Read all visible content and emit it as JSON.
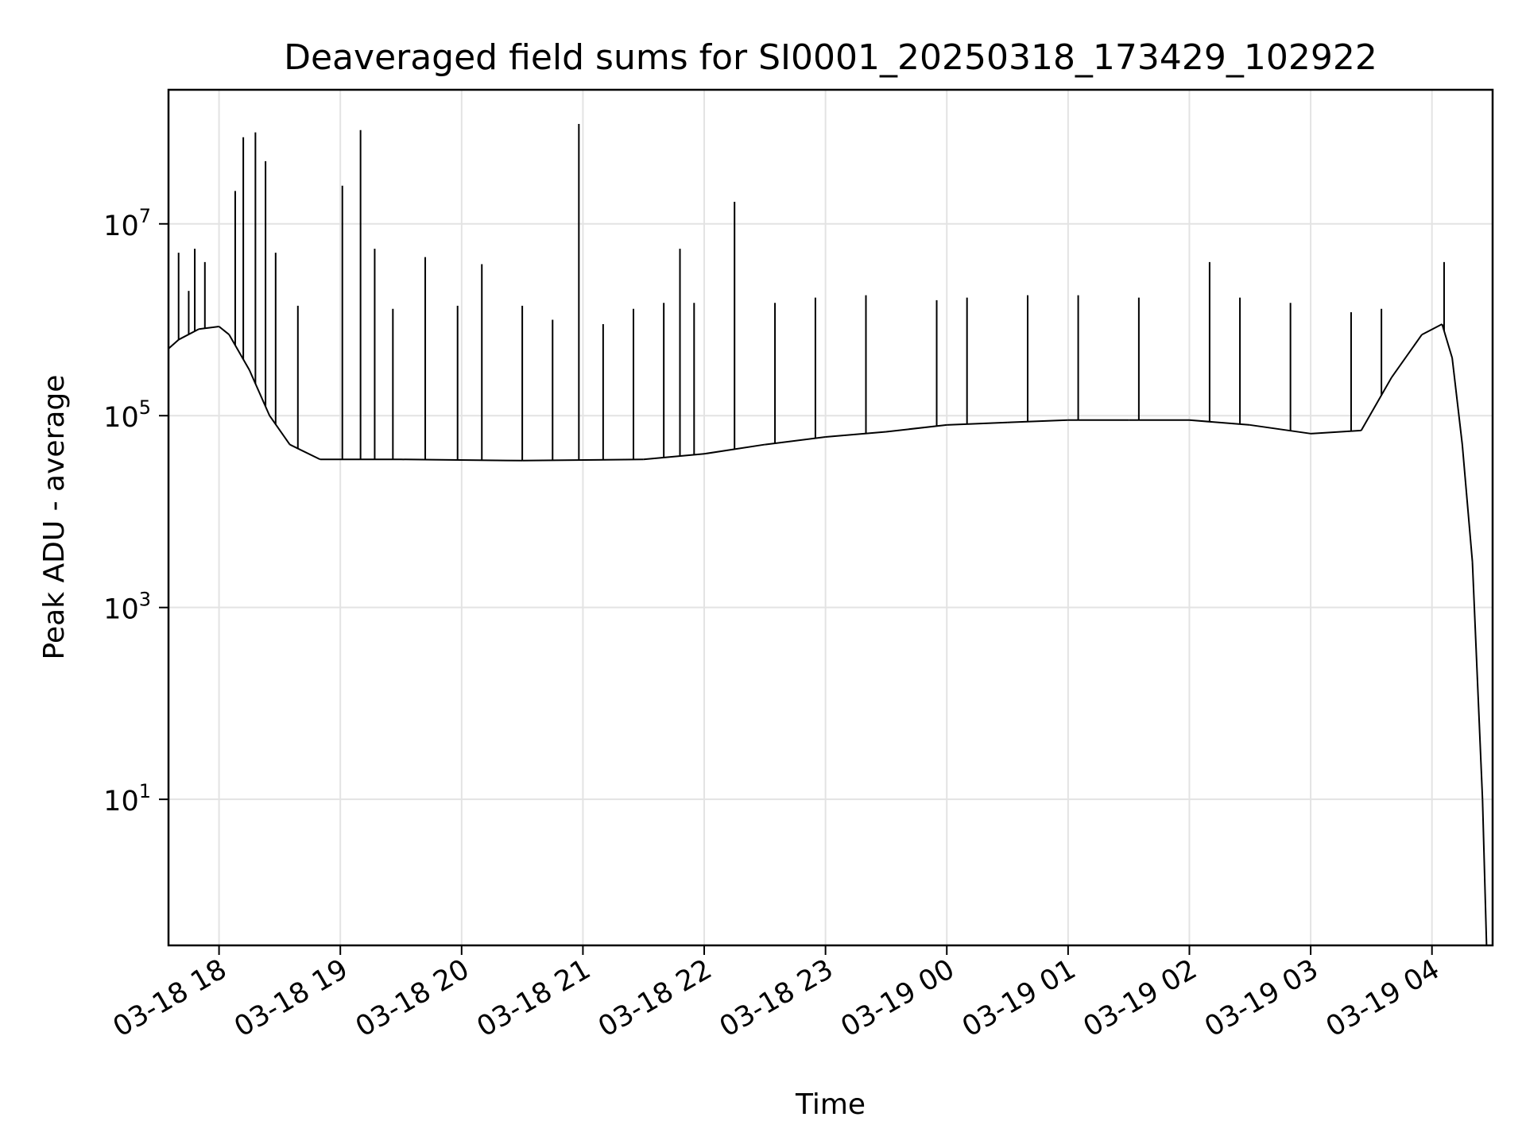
{
  "chart_data": {
    "type": "line",
    "title": "Deaveraged field sums for SI0001_20250318_173429_102922",
    "xlabel": "Time",
    "ylabel": "Peak ADU - average",
    "yscale": "log",
    "xlim": [
      "2025-03-18 17:35",
      "2025-03-19 04:30"
    ],
    "ylim": [
      0.3,
      250000000.0
    ],
    "grid": true,
    "line_color": "#000000",
    "x_ticks": [
      {
        "t": "2025-03-18 18:00",
        "label": "03-18 18"
      },
      {
        "t": "2025-03-18 19:00",
        "label": "03-18 19"
      },
      {
        "t": "2025-03-18 20:00",
        "label": "03-18 20"
      },
      {
        "t": "2025-03-18 21:00",
        "label": "03-18 21"
      },
      {
        "t": "2025-03-18 22:00",
        "label": "03-18 22"
      },
      {
        "t": "2025-03-18 23:00",
        "label": "03-18 23"
      },
      {
        "t": "2025-03-19 00:00",
        "label": "03-19 00"
      },
      {
        "t": "2025-03-19 01:00",
        "label": "03-19 01"
      },
      {
        "t": "2025-03-19 02:00",
        "label": "03-19 02"
      },
      {
        "t": "2025-03-19 03:00",
        "label": "03-19 03"
      },
      {
        "t": "2025-03-19 04:00",
        "label": "03-19 04"
      }
    ],
    "y_ticks": [
      {
        "value": 10,
        "base": "10",
        "exp": "1"
      },
      {
        "value": 1000,
        "base": "10",
        "exp": "3"
      },
      {
        "value": 100000,
        "base": "10",
        "exp": "5"
      },
      {
        "value": 10000000,
        "base": "10",
        "exp": "7"
      }
    ],
    "series": [
      {
        "baseline": [
          [
            "2025-03-18 17:35",
            500000
          ],
          [
            "2025-03-18 17:40",
            620000
          ],
          [
            "2025-03-18 17:50",
            800000
          ],
          [
            "2025-03-18 18:00",
            850000
          ],
          [
            "2025-03-18 18:05",
            700000
          ],
          [
            "2025-03-18 18:15",
            300000
          ],
          [
            "2025-03-18 18:25",
            100000
          ],
          [
            "2025-03-18 18:35",
            50000
          ],
          [
            "2025-03-18 18:50",
            35000
          ],
          [
            "2025-03-18 19:30",
            35000
          ],
          [
            "2025-03-18 20:30",
            34000
          ],
          [
            "2025-03-18 21:30",
            35000
          ],
          [
            "2025-03-18 22:00",
            40000
          ],
          [
            "2025-03-18 22:30",
            50000
          ],
          [
            "2025-03-18 23:00",
            60000
          ],
          [
            "2025-03-18 23:30",
            68000
          ],
          [
            "2025-03-19 00:00",
            80000
          ],
          [
            "2025-03-19 00:30",
            85000
          ],
          [
            "2025-03-19 01:00",
            90000
          ],
          [
            "2025-03-19 01:30",
            90000
          ],
          [
            "2025-03-19 02:00",
            90000
          ],
          [
            "2025-03-19 02:30",
            80000
          ],
          [
            "2025-03-19 03:00",
            65000
          ],
          [
            "2025-03-19 03:25",
            70000
          ],
          [
            "2025-03-19 03:40",
            250000
          ],
          [
            "2025-03-19 03:55",
            700000
          ],
          [
            "2025-03-19 04:05",
            900000
          ],
          [
            "2025-03-19 04:10",
            400000
          ],
          [
            "2025-03-19 04:15",
            50000
          ],
          [
            "2025-03-19 04:20",
            3000
          ],
          [
            "2025-03-19 04:25",
            10
          ],
          [
            "2025-03-19 04:27",
            0.3
          ]
        ],
        "spikes": [
          [
            "2025-03-18 17:40",
            5000000
          ],
          [
            "2025-03-18 17:45",
            2000000
          ],
          [
            "2025-03-18 17:48",
            5500000
          ],
          [
            "2025-03-18 17:53",
            4000000
          ],
          [
            "2025-03-18 18:08",
            22000000
          ],
          [
            "2025-03-18 18:12",
            80000000
          ],
          [
            "2025-03-18 18:18",
            90000000
          ],
          [
            "2025-03-18 18:23",
            45000000
          ],
          [
            "2025-03-18 18:28",
            5000000
          ],
          [
            "2025-03-18 18:39",
            1400000
          ],
          [
            "2025-03-18 19:01",
            25000000
          ],
          [
            "2025-03-18 19:10",
            95000000
          ],
          [
            "2025-03-18 19:17",
            5500000
          ],
          [
            "2025-03-18 19:26",
            1300000
          ],
          [
            "2025-03-18 19:42",
            4500000
          ],
          [
            "2025-03-18 19:58",
            1400000
          ],
          [
            "2025-03-18 20:10",
            3800000
          ],
          [
            "2025-03-18 20:30",
            1400000
          ],
          [
            "2025-03-18 20:45",
            1000000
          ],
          [
            "2025-03-18 20:58",
            110000000
          ],
          [
            "2025-03-18 21:10",
            900000
          ],
          [
            "2025-03-18 21:25",
            1300000
          ],
          [
            "2025-03-18 21:40",
            1500000
          ],
          [
            "2025-03-18 21:48",
            5500000
          ],
          [
            "2025-03-18 21:55",
            1500000
          ],
          [
            "2025-03-18 22:15",
            17000000
          ],
          [
            "2025-03-18 22:35",
            1500000
          ],
          [
            "2025-03-18 22:55",
            1700000
          ],
          [
            "2025-03-18 23:20",
            1800000
          ],
          [
            "2025-03-18 23:55",
            1600000
          ],
          [
            "2025-03-19 00:10",
            1700000
          ],
          [
            "2025-03-19 00:40",
            1800000
          ],
          [
            "2025-03-19 01:05",
            1800000
          ],
          [
            "2025-03-19 01:35",
            1700000
          ],
          [
            "2025-03-19 02:10",
            4000000
          ],
          [
            "2025-03-19 02:25",
            1700000
          ],
          [
            "2025-03-19 02:50",
            1500000
          ],
          [
            "2025-03-19 03:20",
            1200000
          ],
          [
            "2025-03-19 03:35",
            1300000
          ],
          [
            "2025-03-19 04:06",
            4000000
          ]
        ]
      }
    ]
  }
}
